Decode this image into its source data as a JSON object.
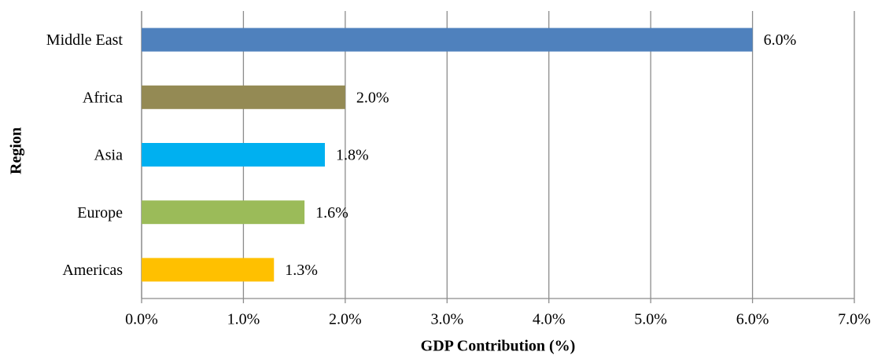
{
  "chart_data": {
    "type": "bar",
    "orientation": "horizontal",
    "xlabel": "GDP Contribution (%)",
    "ylabel": "Region",
    "categories": [
      "Middle East",
      "Africa",
      "Asia",
      "Europe",
      "Americas"
    ],
    "values": [
      6.0,
      2.0,
      1.8,
      1.6,
      1.3
    ],
    "value_labels": [
      "6.0%",
      "2.0%",
      "1.8%",
      "1.6%",
      "1.3%"
    ],
    "colors": [
      "#4f81bd",
      "#948a54",
      "#00b0f0",
      "#9bbb59",
      "#ffc000"
    ],
    "xlim": [
      0,
      7
    ],
    "xticks": [
      {
        "value": 0,
        "label": "0.0%"
      },
      {
        "value": 1,
        "label": "1.0%"
      },
      {
        "value": 2,
        "label": "2.0%"
      },
      {
        "value": 3,
        "label": "3.0%"
      },
      {
        "value": 4,
        "label": "4.0%"
      },
      {
        "value": 5,
        "label": "5.0%"
      },
      {
        "value": 6,
        "label": "6.0%"
      },
      {
        "value": 7,
        "label": "7.0%"
      }
    ],
    "grid": true
  }
}
